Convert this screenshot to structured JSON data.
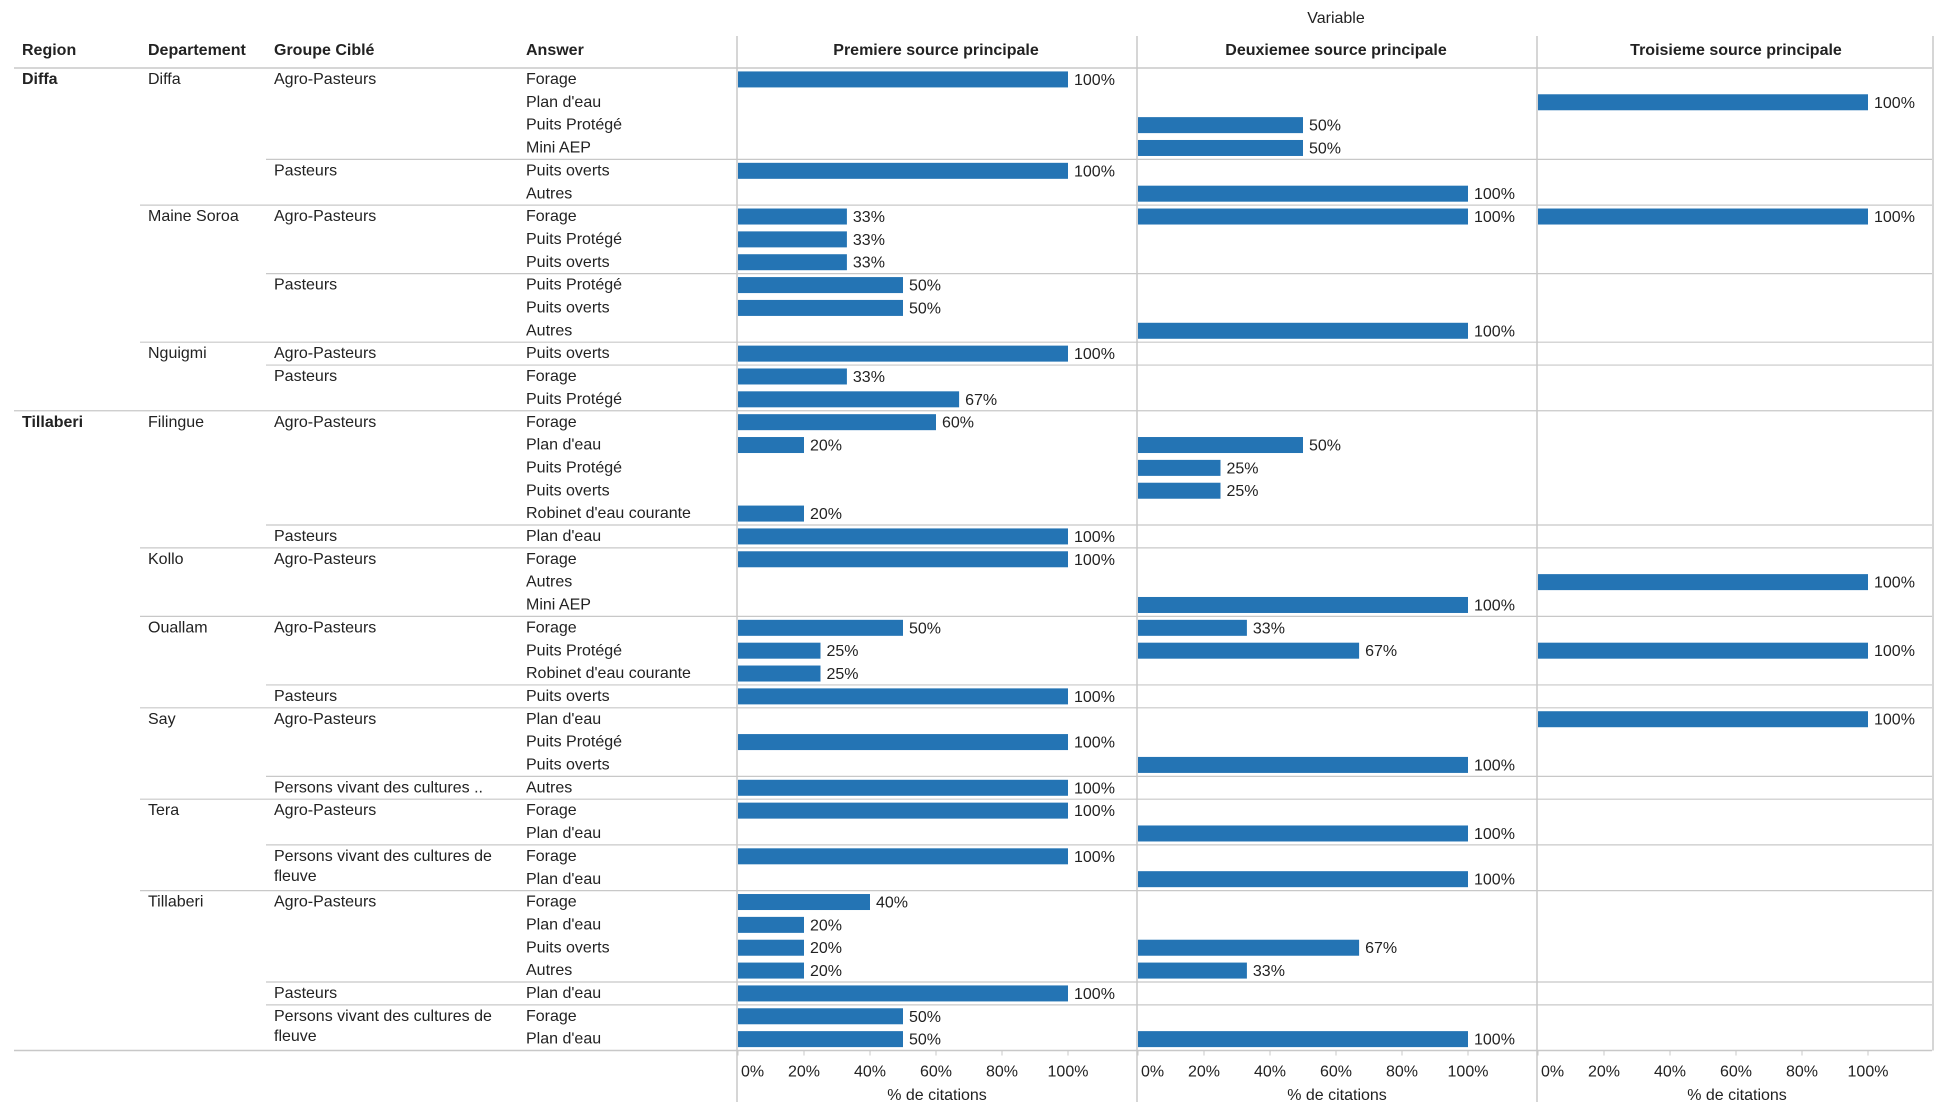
{
  "variable_label": "Variable",
  "headers": {
    "region": "Region",
    "departement": "Departement",
    "groupe": "Groupe Ciblé",
    "answer": "Answer"
  },
  "panels": [
    "Premiere source principale",
    "Deuxiemee source principale",
    "Troisieme source principale"
  ],
  "axis": {
    "ticks": [
      "0%",
      "20%",
      "40%",
      "60%",
      "80%",
      "100%"
    ],
    "tick_values": [
      0,
      20,
      40,
      60,
      80,
      100
    ],
    "label": "% de citations"
  },
  "colors": {
    "bar": "#2474b4",
    "grid": "#c8c8c8",
    "text": "#222222"
  },
  "chart_data": {
    "type": "bar",
    "orientation": "horizontal",
    "unit": "% de citations",
    "xlim": [
      0,
      100
    ],
    "rows": [
      {
        "region": "Diffa",
        "departement": "Diffa",
        "groupe": "Agro-Pasteurs",
        "answer": "Forage",
        "values": [
          100,
          null,
          null
        ]
      },
      {
        "region": "",
        "departement": "",
        "groupe": "",
        "answer": "Plan d'eau",
        "values": [
          null,
          null,
          100
        ]
      },
      {
        "region": "",
        "departement": "",
        "groupe": "",
        "answer": "Puits Protégé",
        "values": [
          null,
          50,
          null
        ]
      },
      {
        "region": "",
        "departement": "",
        "groupe": "",
        "answer": "Mini AEP",
        "values": [
          null,
          50,
          null
        ]
      },
      {
        "region": "",
        "departement": "",
        "groupe": "Pasteurs",
        "answer": "Puits overts",
        "values": [
          100,
          null,
          null
        ]
      },
      {
        "region": "",
        "departement": "",
        "groupe": "",
        "answer": "Autres",
        "values": [
          null,
          100,
          null
        ]
      },
      {
        "region": "",
        "departement": "Maine Soroa",
        "groupe": "Agro-Pasteurs",
        "answer": "Forage",
        "values": [
          33,
          100,
          100
        ]
      },
      {
        "region": "",
        "departement": "",
        "groupe": "",
        "answer": "Puits Protégé",
        "values": [
          33,
          null,
          null
        ]
      },
      {
        "region": "",
        "departement": "",
        "groupe": "",
        "answer": "Puits overts",
        "values": [
          33,
          null,
          null
        ]
      },
      {
        "region": "",
        "departement": "",
        "groupe": "Pasteurs",
        "answer": "Puits Protégé",
        "values": [
          50,
          null,
          null
        ]
      },
      {
        "region": "",
        "departement": "",
        "groupe": "",
        "answer": "Puits overts",
        "values": [
          50,
          null,
          null
        ]
      },
      {
        "region": "",
        "departement": "",
        "groupe": "",
        "answer": "Autres",
        "values": [
          null,
          100,
          null
        ]
      },
      {
        "region": "",
        "departement": "Nguigmi",
        "groupe": "Agro-Pasteurs",
        "answer": "Puits overts",
        "values": [
          100,
          null,
          null
        ]
      },
      {
        "region": "",
        "departement": "",
        "groupe": "Pasteurs",
        "answer": "Forage",
        "values": [
          33,
          null,
          null
        ]
      },
      {
        "region": "",
        "departement": "",
        "groupe": "",
        "answer": "Puits Protégé",
        "values": [
          67,
          null,
          null
        ]
      },
      {
        "region": "Tillaberi",
        "departement": "Filingue",
        "groupe": "Agro-Pasteurs",
        "answer": "Forage",
        "values": [
          60,
          null,
          null
        ]
      },
      {
        "region": "",
        "departement": "",
        "groupe": "",
        "answer": "Plan d'eau",
        "values": [
          20,
          50,
          null
        ]
      },
      {
        "region": "",
        "departement": "",
        "groupe": "",
        "answer": "Puits Protégé",
        "values": [
          null,
          25,
          null
        ]
      },
      {
        "region": "",
        "departement": "",
        "groupe": "",
        "answer": "Puits overts",
        "values": [
          null,
          25,
          null
        ]
      },
      {
        "region": "",
        "departement": "",
        "groupe": "",
        "answer": "Robinet d'eau courante",
        "values": [
          20,
          null,
          null
        ]
      },
      {
        "region": "",
        "departement": "",
        "groupe": "Pasteurs",
        "answer": "Plan d'eau",
        "values": [
          100,
          null,
          null
        ]
      },
      {
        "region": "",
        "departement": "Kollo",
        "groupe": "Agro-Pasteurs",
        "answer": "Forage",
        "values": [
          100,
          null,
          null
        ]
      },
      {
        "region": "",
        "departement": "",
        "groupe": "",
        "answer": "Autres",
        "values": [
          null,
          null,
          100
        ]
      },
      {
        "region": "",
        "departement": "",
        "groupe": "",
        "answer": "Mini AEP",
        "values": [
          null,
          100,
          null
        ]
      },
      {
        "region": "",
        "departement": "Ouallam",
        "groupe": "Agro-Pasteurs",
        "answer": "Forage",
        "values": [
          50,
          33,
          null
        ]
      },
      {
        "region": "",
        "departement": "",
        "groupe": "",
        "answer": "Puits Protégé",
        "values": [
          25,
          67,
          100
        ]
      },
      {
        "region": "",
        "departement": "",
        "groupe": "",
        "answer": "Robinet d'eau courante",
        "values": [
          25,
          null,
          null
        ]
      },
      {
        "region": "",
        "departement": "",
        "groupe": "Pasteurs",
        "answer": "Puits overts",
        "values": [
          100,
          null,
          null
        ]
      },
      {
        "region": "",
        "departement": "Say",
        "groupe": "Agro-Pasteurs",
        "answer": "Plan d'eau",
        "values": [
          null,
          null,
          100
        ]
      },
      {
        "region": "",
        "departement": "",
        "groupe": "",
        "answer": "Puits Protégé",
        "values": [
          100,
          null,
          null
        ]
      },
      {
        "region": "",
        "departement": "",
        "groupe": "",
        "answer": "Puits overts",
        "values": [
          null,
          100,
          null
        ]
      },
      {
        "region": "",
        "departement": "",
        "groupe": "Persons vivant des cultures ..",
        "answer": "Autres",
        "values": [
          100,
          null,
          null
        ]
      },
      {
        "region": "",
        "departement": "Tera",
        "groupe": "Agro-Pasteurs",
        "answer": "Forage",
        "values": [
          100,
          null,
          null
        ]
      },
      {
        "region": "",
        "departement": "",
        "groupe": "",
        "answer": "Plan d'eau",
        "values": [
          null,
          100,
          null
        ]
      },
      {
        "region": "",
        "departement": "",
        "groupe": "Persons vivant des cultures de fleuve",
        "answer": "Forage",
        "values": [
          100,
          null,
          null
        ]
      },
      {
        "region": "",
        "departement": "",
        "groupe": "",
        "answer": "Plan d'eau",
        "values": [
          null,
          100,
          null
        ]
      },
      {
        "region": "",
        "departement": "Tillaberi",
        "groupe": "Agro-Pasteurs",
        "answer": "Forage",
        "values": [
          40,
          null,
          null
        ]
      },
      {
        "region": "",
        "departement": "",
        "groupe": "",
        "answer": "Plan d'eau",
        "values": [
          20,
          null,
          null
        ]
      },
      {
        "region": "",
        "departement": "",
        "groupe": "",
        "answer": "Puits overts",
        "values": [
          20,
          67,
          null
        ]
      },
      {
        "region": "",
        "departement": "",
        "groupe": "",
        "answer": "Autres",
        "values": [
          20,
          33,
          null
        ]
      },
      {
        "region": "",
        "departement": "",
        "groupe": "Pasteurs",
        "answer": "Plan d'eau",
        "values": [
          100,
          null,
          null
        ]
      },
      {
        "region": "",
        "departement": "",
        "groupe": "Persons vivant des cultures de fleuve",
        "answer": "Forage",
        "values": [
          50,
          null,
          null
        ]
      },
      {
        "region": "",
        "departement": "",
        "groupe": "",
        "answer": "Plan d'eau",
        "values": [
          50,
          100,
          null
        ]
      }
    ]
  }
}
